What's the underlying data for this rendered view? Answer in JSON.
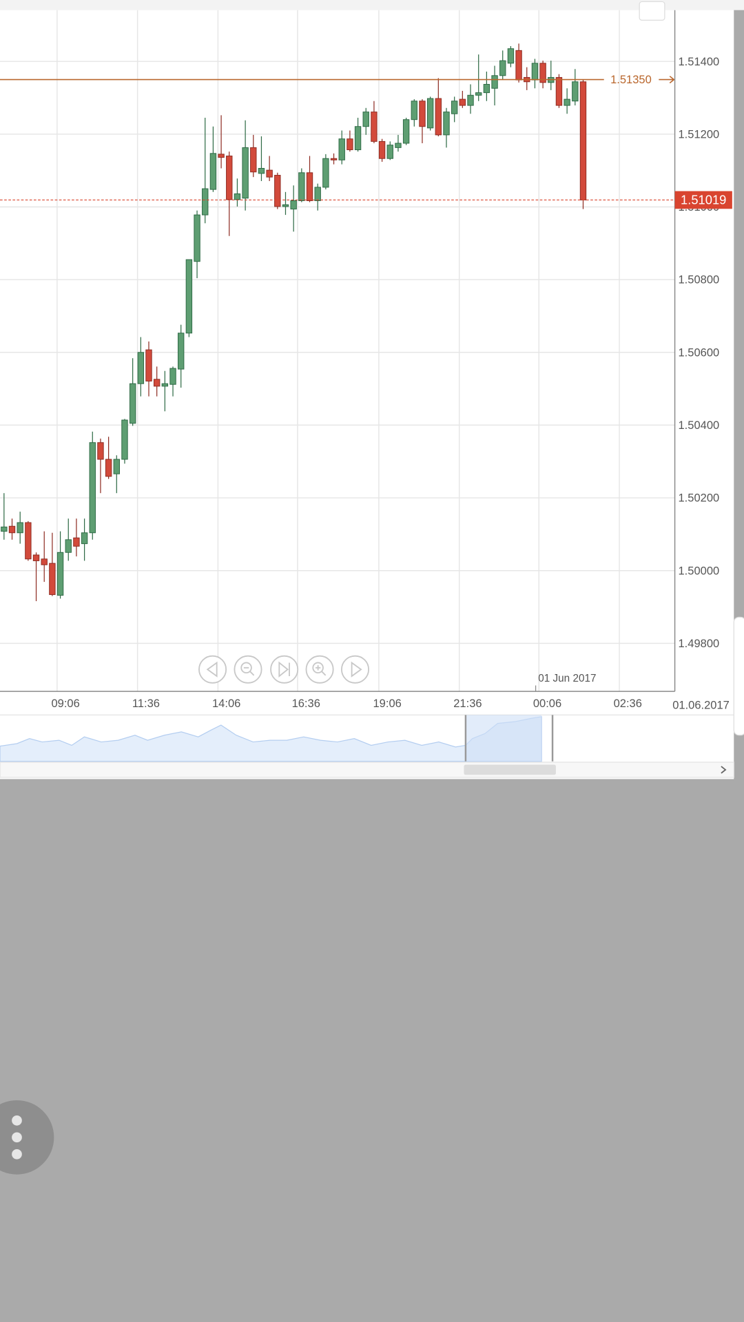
{
  "chart_data": {
    "type": "candlestick",
    "open": [
      1.50108,
      1.50122,
      1.50104,
      1.50132,
      1.50043,
      1.50032,
      1.5002,
      1.49932,
      1.5005,
      1.5009,
      1.50074,
      1.50104,
      1.50352,
      1.50306,
      1.50266,
      1.50306,
      1.50405,
      1.50514,
      1.50607,
      1.50526,
      1.50507,
      1.50512,
      1.50554,
      1.50653,
      1.5085,
      1.50978,
      1.51048,
      1.51145,
      1.5114,
      1.5102,
      1.51024,
      1.51163,
      1.51092,
      1.51101,
      1.51087,
      1.51001,
      1.50994,
      1.51017,
      1.51094,
      1.51017,
      1.51054,
      1.51133,
      1.51129,
      1.51187,
      1.51157,
      1.51221,
      1.51261,
      1.5118,
      1.51133,
      1.51163,
      1.51175,
      1.5124,
      1.51291,
      1.51217,
      1.51298,
      1.51198,
      1.51256,
      1.51296,
      1.51279,
      1.51307,
      1.51314,
      1.51326,
      1.51361,
      1.51395,
      1.5143,
      1.51356,
      1.51349,
      1.51395,
      1.51342,
      1.51356,
      1.51279,
      1.51291,
      1.51344
    ],
    "high": [
      1.50213,
      1.50143,
      1.50162,
      1.50136,
      1.5005,
      1.50108,
      1.50104,
      1.50108,
      1.50143,
      1.50143,
      1.50143,
      1.50382,
      1.50363,
      1.50368,
      1.50317,
      1.50417,
      1.50584,
      1.50642,
      1.5063,
      1.50561,
      1.50549,
      1.50561,
      1.50676,
      1.50855,
      1.5099,
      1.51245,
      1.51221,
      1.51252,
      1.51152,
      1.51078,
      1.51238,
      1.51198,
      1.51194,
      1.5114,
      1.51094,
      1.51041,
      1.51059,
      1.51106,
      1.5114,
      1.51064,
      1.51145,
      1.51147,
      1.5121,
      1.5121,
      1.51245,
      1.51272,
      1.51291,
      1.51187,
      1.5118,
      1.51198,
      1.51245,
      1.51296,
      1.51296,
      1.51303,
      1.51354,
      1.51272,
      1.51303,
      1.51319,
      1.51337,
      1.51419,
      1.51372,
      1.51388,
      1.5143,
      1.51442,
      1.51449,
      1.51384,
      1.51407,
      1.51402,
      1.51402,
      1.51365,
      1.51326,
      1.51379,
      1.51349
    ],
    "low": [
      1.50085,
      1.50085,
      1.50074,
      1.50027,
      1.49916,
      1.49969,
      1.4993,
      1.49923,
      1.50027,
      1.50039,
      1.50027,
      1.50085,
      1.50213,
      1.50252,
      1.50213,
      1.50294,
      1.50398,
      1.50479,
      1.50479,
      1.50479,
      1.50438,
      1.50479,
      1.50503,
      1.50642,
      1.50804,
      1.50955,
      1.51041,
      1.51106,
      1.5092,
      1.51001,
      1.5099,
      1.51082,
      1.51071,
      1.51071,
      1.50994,
      1.50978,
      1.50932,
      1.51013,
      1.51013,
      1.5099,
      1.51048,
      1.51117,
      1.51117,
      1.51152,
      1.51152,
      1.51198,
      1.51175,
      1.51124,
      1.51129,
      1.51152,
      1.5117,
      1.51221,
      1.51175,
      1.5121,
      1.51194,
      1.51163,
      1.51233,
      1.51272,
      1.51256,
      1.51291,
      1.51291,
      1.51279,
      1.51349,
      1.51384,
      1.51342,
      1.51321,
      1.51326,
      1.51326,
      1.51321,
      1.51272,
      1.51256,
      1.51279,
      1.50994
    ],
    "close": [
      1.5012,
      1.50104,
      1.50132,
      1.50032,
      1.50027,
      1.50016,
      1.49934,
      1.5005,
      1.50085,
      1.50067,
      1.50104,
      1.50352,
      1.50306,
      1.50259,
      1.50306,
      1.50414,
      1.50514,
      1.506,
      1.50521,
      1.50507,
      1.50514,
      1.50556,
      1.50653,
      1.50855,
      1.50978,
      1.5105,
      1.51147,
      1.51136,
      1.5102,
      1.51036,
      1.51163,
      1.51096,
      1.51106,
      1.51082,
      1.51001,
      1.51006,
      1.51017,
      1.51094,
      1.51017,
      1.51054,
      1.51133,
      1.51129,
      1.51187,
      1.51157,
      1.51221,
      1.51261,
      1.5118,
      1.51133,
      1.5117,
      1.51175,
      1.5124,
      1.51291,
      1.51221,
      1.51298,
      1.51198,
      1.51261,
      1.51291,
      1.51279,
      1.51307,
      1.51314,
      1.51337,
      1.51361,
      1.51402,
      1.51435,
      1.51349,
      1.51344,
      1.51395,
      1.51342,
      1.51356,
      1.51279,
      1.51296,
      1.51344,
      1.51019
    ],
    "up_color": "#5e9e72",
    "down_color": "#d24a3b",
    "xlim": [
      -0.5,
      83.4
    ],
    "xticks": [
      {
        "value": 6.6,
        "label": "09:06"
      },
      {
        "value": 16.6,
        "label": "11:36"
      },
      {
        "value": 26.6,
        "label": "14:06"
      },
      {
        "value": 36.5,
        "label": "16:36"
      },
      {
        "value": 46.6,
        "label": "19:06"
      },
      {
        "value": 56.6,
        "label": "21:36"
      },
      {
        "value": 66.5,
        "label": "00:06"
      },
      {
        "value": 76.5,
        "label": "02:36"
      }
    ],
    "ylim": [
      1.49668,
      1.51541
    ],
    "yticks": [
      {
        "value": 1.498,
        "label": "1.49800"
      },
      {
        "value": 1.5,
        "label": "1.50000"
      },
      {
        "value": 1.502,
        "label": "1.50200"
      },
      {
        "value": 1.504,
        "label": "1.50400"
      },
      {
        "value": 1.506,
        "label": "1.50600"
      },
      {
        "value": 1.508,
        "label": "1.50800"
      },
      {
        "value": 1.51,
        "label": "1.51000"
      },
      {
        "value": 1.512,
        "label": "1.51200"
      },
      {
        "value": 1.514,
        "label": "1.51400"
      }
    ],
    "grid": true,
    "price_lines": [
      {
        "value": 1.5135,
        "label": "1.51350",
        "color": "#b9662c",
        "style": "solid"
      },
      {
        "value": 1.51019,
        "label": "1.51019",
        "color": "#d9442f",
        "style": "dashed"
      }
    ],
    "date_marker": {
      "value": 66.1,
      "label": "01 Jun 2017"
    },
    "date_label": "01.06.2017"
  }
}
